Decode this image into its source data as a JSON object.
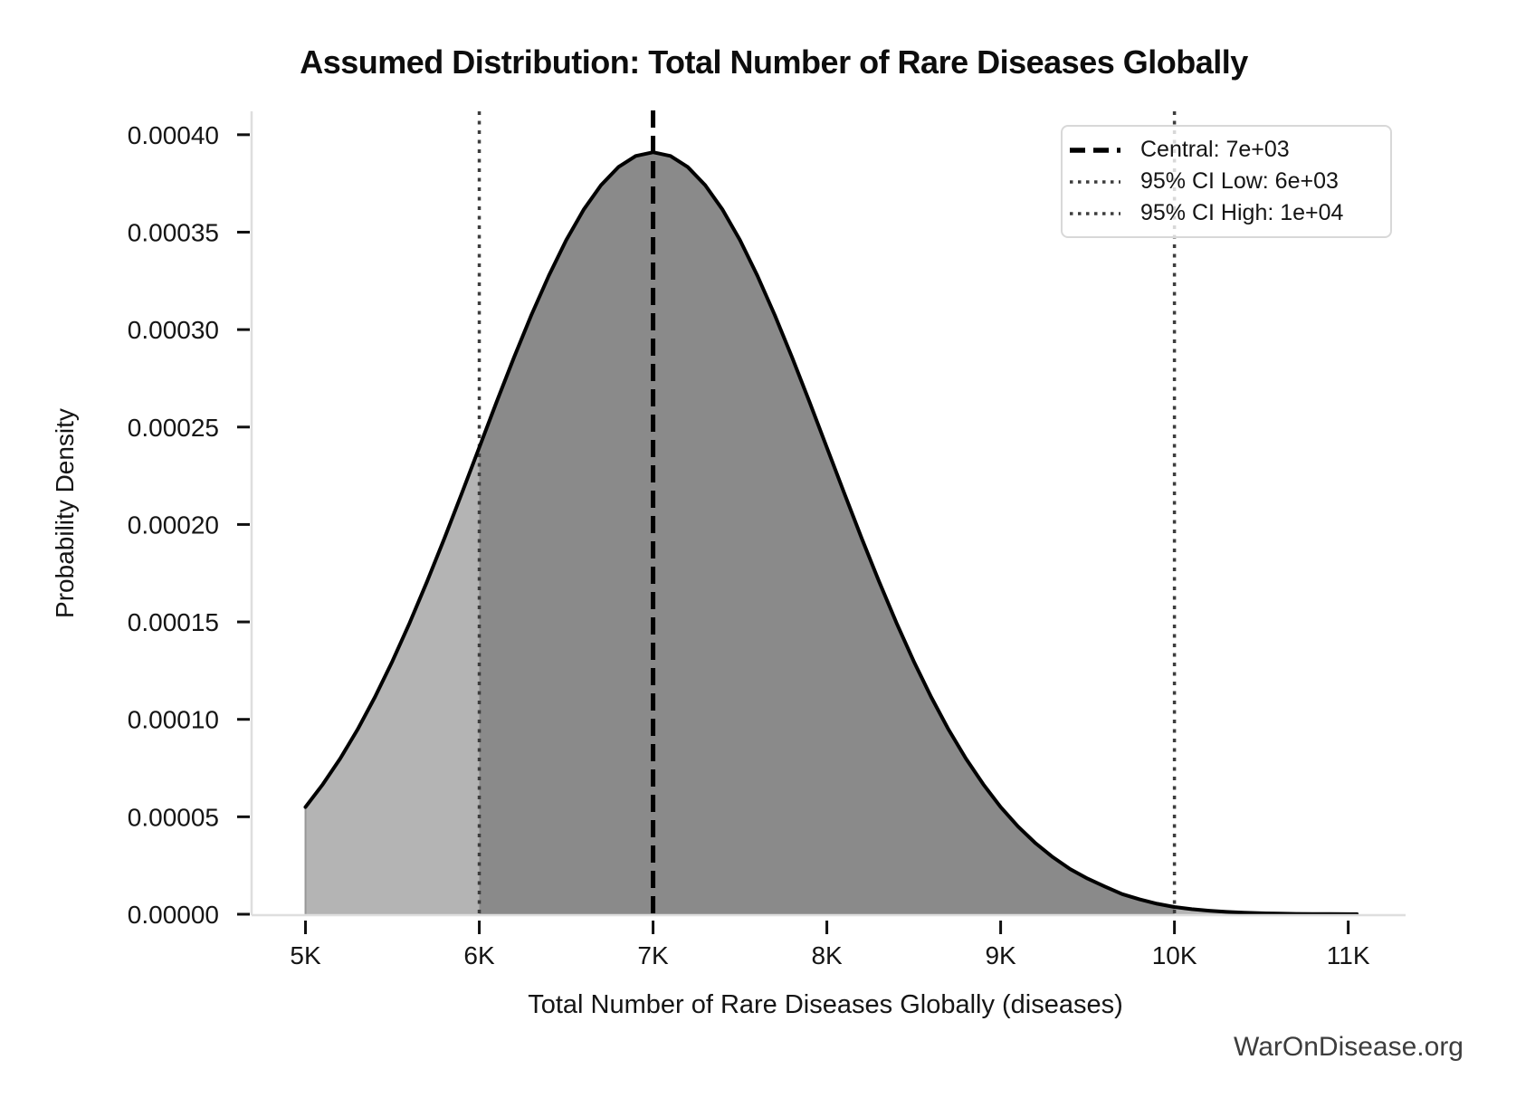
{
  "title": "Assumed Distribution: Total Number of Rare Diseases Globally",
  "watermark": "WarOnDisease.org",
  "legend": {
    "central_label": "Central: 7e+03",
    "ci_low_label": "95% CI Low: 6e+03",
    "ci_high_label": "95% CI High: 1e+04"
  },
  "chart_data": {
    "type": "area",
    "title": "Assumed Distribution: Total Number of Rare Diseases Globally",
    "xlabel": "Total Number of Rare Diseases Globally (diseases)",
    "ylabel": "Probability Density",
    "grid": false,
    "legend_position": "upper right",
    "xlim": [
      4690,
      11330
    ],
    "ylim": [
      0,
      0.000412
    ],
    "x_ticks": [
      5000,
      6000,
      7000,
      8000,
      9000,
      10000,
      11000
    ],
    "x_tick_labels": [
      "5K",
      "6K",
      "7K",
      "8K",
      "9K",
      "10K",
      "11K"
    ],
    "y_ticks": [
      0.0,
      5e-05,
      0.0001,
      0.00015,
      0.0002,
      0.00025,
      0.0003,
      0.00035,
      0.0004
    ],
    "y_tick_labels": [
      "0.00000",
      "0.00005",
      "0.00010",
      "0.00015",
      "0.00020",
      "0.00025",
      "0.00030",
      "0.00035",
      "0.00040"
    ],
    "central": {
      "value": 7000,
      "label": "Central: 7e+03"
    },
    "ci_low": {
      "value": 6000,
      "label": "95% CI Low: 6e+03"
    },
    "ci_high": {
      "value": 10000,
      "label": "95% CI High: 1e+04"
    },
    "peak": {
      "x": 7000,
      "density": 0.000391
    },
    "x": [
      5000,
      5100,
      5200,
      5300,
      5400,
      5500,
      5600,
      5700,
      5800,
      5900,
      6000,
      6100,
      6200,
      6300,
      6400,
      6500,
      6600,
      6700,
      6800,
      6900,
      7000,
      7100,
      7200,
      7300,
      7400,
      7500,
      7600,
      7700,
      7800,
      7900,
      8000,
      8100,
      8200,
      8300,
      8400,
      8500,
      8600,
      8700,
      8800,
      8900,
      9000,
      9100,
      9200,
      9300,
      9400,
      9500,
      9600,
      9700,
      9800,
      9900,
      10000,
      10100,
      10200,
      10300,
      10400,
      10500,
      10600,
      10700,
      10800,
      10900,
      11000,
      11050
    ],
    "density": [
      5.5e-05,
      6.67e-05,
      7.99e-05,
      9.48e-05,
      0.0001115,
      0.0001298,
      0.0001496,
      0.0001708,
      0.000193,
      0.0002161,
      0.0002395,
      0.0002629,
      0.0002857,
      0.0003075,
      0.0003277,
      0.0003459,
      0.0003615,
      0.0003741,
      0.0003834,
      0.0003891,
      0.000391,
      0.0003891,
      0.0003834,
      0.0003741,
      0.0003615,
      0.0003459,
      0.0003277,
      0.0003075,
      0.0002857,
      0.0002629,
      0.0002395,
      0.0002161,
      0.000193,
      0.0001708,
      0.0001496,
      0.0001298,
      0.0001115,
      9.48e-05,
      7.99e-05,
      6.67e-05,
      5.5e-05,
      4.5e-05,
      3.65e-05,
      2.93e-05,
      2.32e-05,
      1.83e-05,
      1.42e-05,
      1.03e-05,
      7.6e-06,
      5.4e-06,
      3.7e-06,
      2.6e-06,
      1.8e-06,
      1.2e-06,
      8e-07,
      5e-07,
      3.2e-07,
      2e-07,
      1.2e-07,
      7e-08,
      4e-08,
      3e-08
    ],
    "colors": {
      "curve": "#000000",
      "fill_light": "#b4b4b4",
      "fill_ci": "#8a8a8a",
      "central_line": "#000000",
      "ci_line": "#3d3d3d",
      "spine": "#dedede",
      "tick": "#111111",
      "tick_label": "#151515",
      "watermark": "#3d3d3d"
    }
  }
}
